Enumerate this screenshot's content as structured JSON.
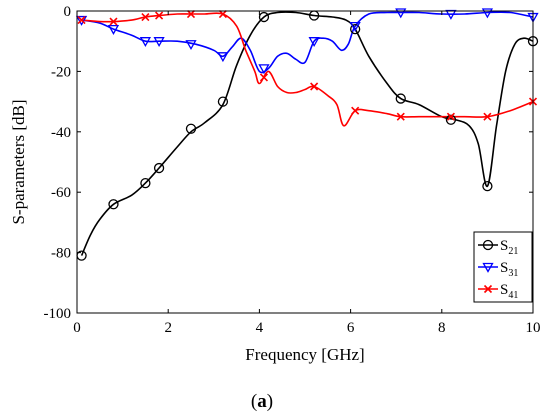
{
  "caption": {
    "open": "(",
    "letter": "a",
    "close": ")"
  },
  "chart_data": {
    "type": "line",
    "title": "",
    "xlabel": "Frequency [GHz]",
    "ylabel": "S-parameters [dB]",
    "xlim": [
      0,
      10
    ],
    "ylim": [
      -100,
      0
    ],
    "xticks": [
      0,
      2,
      4,
      6,
      8,
      10
    ],
    "yticks": [
      0,
      -20,
      -40,
      -60,
      -80,
      -100
    ],
    "grid": false,
    "legend_position": "bottom-right",
    "series": [
      {
        "name": "S21",
        "legend_main": "S",
        "legend_sub": "21",
        "color": "#000000",
        "marker": "circle",
        "x": [
          0.1,
          0.3,
          0.5,
          0.8,
          1.2,
          1.5,
          1.8,
          2.2,
          2.5,
          2.8,
          3.2,
          3.5,
          3.8,
          4.1,
          4.4,
          4.8,
          5.2,
          5.6,
          5.9,
          6.1,
          6.4,
          6.8,
          7.1,
          7.5,
          8.0,
          8.3,
          8.6,
          8.8,
          9.0,
          9.2,
          9.4,
          9.6,
          9.8,
          10.0
        ],
        "y": [
          -81,
          -74,
          -69,
          -64,
          -61,
          -57,
          -52,
          -45,
          -40,
          -37,
          -31,
          -18,
          -8,
          -2,
          -0.5,
          -0.5,
          -1.5,
          -2,
          -3,
          -6,
          -15,
          -24,
          -29,
          -31,
          -35,
          -36,
          -38,
          -44,
          -58,
          -38,
          -20,
          -11,
          -9,
          -10
        ],
        "marker_x": [
          0.1,
          0.8,
          1.5,
          1.8,
          2.5,
          3.2,
          4.1,
          5.2,
          6.1,
          7.1,
          8.2,
          9.0,
          10.0
        ],
        "marker_y": [
          -81,
          -64,
          -57,
          -52,
          -39,
          -30,
          -2,
          -1.5,
          -6,
          -29,
          -36,
          -58,
          -10
        ]
      },
      {
        "name": "S31",
        "legend_main": "S",
        "legend_sub": "31",
        "color": "#0000ff",
        "marker": "triangle-down",
        "x": [
          0.1,
          0.5,
          0.8,
          1.2,
          1.5,
          1.8,
          2.2,
          2.6,
          3.0,
          3.2,
          3.4,
          3.6,
          3.8,
          4.0,
          4.2,
          4.4,
          4.6,
          4.8,
          5.0,
          5.2,
          5.4,
          5.6,
          5.8,
          5.95,
          6.1,
          6.4,
          6.8,
          7.1,
          7.5,
          8.0,
          8.5,
          9.0,
          9.5,
          10.0
        ],
        "y": [
          -3,
          -4,
          -6,
          -8,
          -10,
          -10,
          -10,
          -11,
          -13,
          -15,
          -12,
          -9,
          -13,
          -20,
          -19,
          -15,
          -14,
          -16,
          -17,
          -10,
          -9,
          -10,
          -13,
          -11,
          -5,
          -1,
          -0.5,
          -0.5,
          -0.5,
          -1,
          -1,
          -0.5,
          -0.5,
          -2
        ],
        "marker_x": [
          0.1,
          0.8,
          1.5,
          1.8,
          2.5,
          3.2,
          4.1,
          5.2,
          6.1,
          7.1,
          8.2,
          9.0,
          10.0
        ],
        "marker_y": [
          -3,
          -6,
          -10,
          -10,
          -11,
          -15,
          -19,
          -10,
          -5,
          -0.5,
          -1,
          -0.5,
          -2
        ]
      },
      {
        "name": "S41",
        "legend_main": "S",
        "legend_sub": "41",
        "color": "#ff0000",
        "marker": "x",
        "x": [
          0.1,
          0.5,
          0.8,
          1.2,
          1.5,
          1.8,
          2.2,
          2.5,
          2.8,
          3.2,
          3.5,
          3.7,
          3.9,
          4.0,
          4.2,
          4.4,
          4.6,
          4.8,
          5.0,
          5.2,
          5.5,
          5.7,
          5.85,
          6.1,
          6.4,
          6.8,
          7.1,
          7.5,
          8.0,
          8.5,
          9.0,
          9.5,
          10.0
        ],
        "y": [
          -3,
          -3.5,
          -3.5,
          -3,
          -2,
          -1.5,
          -1,
          -1,
          -1,
          -1,
          -5,
          -13,
          -20,
          -24,
          -20,
          -25,
          -27,
          -27,
          -26,
          -25,
          -28,
          -31,
          -38,
          -33,
          -33,
          -34,
          -35,
          -35,
          -35,
          -35,
          -35,
          -33,
          -30
        ],
        "marker_x": [
          0.1,
          0.8,
          1.5,
          1.8,
          2.5,
          3.2,
          4.1,
          5.2,
          6.1,
          7.1,
          8.2,
          9.0,
          10.0
        ],
        "marker_y": [
          -3,
          -3.5,
          -2,
          -1.5,
          -1,
          -1,
          -22,
          -25,
          -33,
          -35,
          -35,
          -35,
          -30
        ]
      }
    ]
  }
}
